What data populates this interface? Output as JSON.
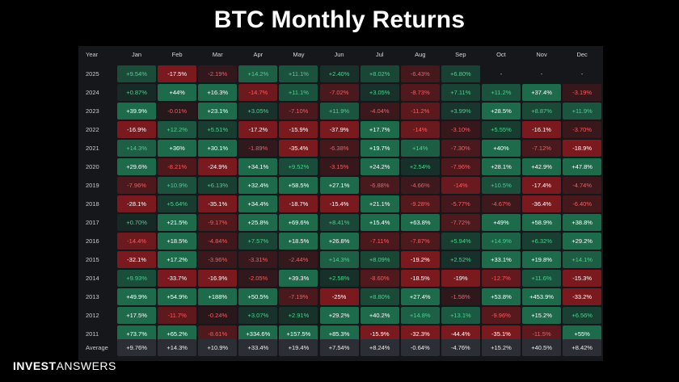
{
  "title": "BTC Monthly Returns",
  "brand": {
    "bold": "INVEST",
    "light": "ANSWERS"
  },
  "chart_data": {
    "type": "table",
    "title": "BTC Monthly Returns",
    "corner_label": "Year",
    "columns": [
      "Jan",
      "Feb",
      "Mar",
      "Apr",
      "May",
      "Jun",
      "Jul",
      "Aug",
      "Sep",
      "Oct",
      "Nov",
      "Dec"
    ],
    "rows": [
      {
        "year": "2025",
        "values": [
          "+9.54%",
          "-17.5%",
          "-2.19%",
          "+14.2%",
          "+11.1%",
          "+2.40%",
          "+8.02%",
          "-6.43%",
          "+6.80%",
          "-",
          "-",
          "-"
        ]
      },
      {
        "year": "2024",
        "values": [
          "+0.87%",
          "+44%",
          "+16.3%",
          "-14.7%",
          "+11.1%",
          "-7.02%",
          "+3.05%",
          "-8.73%",
          "+7.11%",
          "+11.2%",
          "+37.4%",
          "-3.19%"
        ]
      },
      {
        "year": "2023",
        "values": [
          "+39.9%",
          "-0.01%",
          "+23.1%",
          "+3.05%",
          "-7.10%",
          "+11.9%",
          "-4.04%",
          "-11.2%",
          "+3.99%",
          "+28.5%",
          "+8.87%",
          "+11.9%"
        ]
      },
      {
        "year": "2022",
        "values": [
          "-16.9%",
          "+12.2%",
          "+5.51%",
          "-17.2%",
          "-15.9%",
          "-37.9%",
          "+17.7%",
          "-14%",
          "-3.10%",
          "+5.55%",
          "-16.1%",
          "-3.70%"
        ]
      },
      {
        "year": "2021",
        "values": [
          "+14.3%",
          "+36%",
          "+30.1%",
          "-1.89%",
          "-35.4%",
          "-6.38%",
          "+19.7%",
          "+14%",
          "-7.30%",
          "+40%",
          "-7.12%",
          "-18.9%"
        ]
      },
      {
        "year": "2020",
        "values": [
          "+29.6%",
          "-8.21%",
          "-24.9%",
          "+34.1%",
          "+9.52%",
          "-3.15%",
          "+24.2%",
          "+2.54%",
          "-7.96%",
          "+28.1%",
          "+42.9%",
          "+47.8%"
        ]
      },
      {
        "year": "2019",
        "values": [
          "-7.96%",
          "+10.9%",
          "+6.13%",
          "+32.4%",
          "+58.5%",
          "+27.1%",
          "-6.88%",
          "-4.66%",
          "-14%",
          "+10.5%",
          "-17.4%",
          "-4.74%"
        ]
      },
      {
        "year": "2018",
        "values": [
          "-28.1%",
          "+5.64%",
          "-35.1%",
          "+34.4%",
          "-18.7%",
          "-15.4%",
          "+21.1%",
          "-9.28%",
          "-5.77%",
          "-4.67%",
          "-36.4%",
          "-6.40%"
        ]
      },
      {
        "year": "2017",
        "values": [
          "+0.70%",
          "+21.5%",
          "-9.17%",
          "+25.8%",
          "+69.6%",
          "+8.41%",
          "+15.4%",
          "+63.8%",
          "-7.72%",
          "+49%",
          "+58.9%",
          "+38.8%"
        ]
      },
      {
        "year": "2016",
        "values": [
          "-14.4%",
          "+18.5%",
          "-4.84%",
          "+7.57%",
          "+18.5%",
          "+26.8%",
          "-7.11%",
          "-7.87%",
          "+5.94%",
          "+14.9%",
          "+6.32%",
          "+29.2%"
        ]
      },
      {
        "year": "2015",
        "values": [
          "-32.1%",
          "+17.2%",
          "-3.96%",
          "-3.31%",
          "-2.44%",
          "+14.3%",
          "+8.09%",
          "-19.2%",
          "+2.52%",
          "+33.1%",
          "+19.8%",
          "+14.1%"
        ]
      },
      {
        "year": "2014",
        "values": [
          "+9.93%",
          "-33.7%",
          "-16.9%",
          "-2.05%",
          "+39.3%",
          "+2.58%",
          "-8.60%",
          "-18.5%",
          "-19%",
          "-12.7%",
          "+11.6%",
          "-15.3%"
        ]
      },
      {
        "year": "2013",
        "values": [
          "+49.9%",
          "+54.9%",
          "+188%",
          "+50.5%",
          "-7.19%",
          "-25%",
          "+8.80%",
          "+27.4%",
          "-1.58%",
          "+53.8%",
          "+453.9%",
          "-33.2%"
        ]
      },
      {
        "year": "2012",
        "values": [
          "+17.5%",
          "-11.7%",
          "-0.24%",
          "+3.07%",
          "+2.91%",
          "+29.2%",
          "+40.2%",
          "+14.8%",
          "+13.1%",
          "-9.96%",
          "+15.2%",
          "+6.56%"
        ]
      },
      {
        "year": "2011",
        "values": [
          "+73.7%",
          "+65.2%",
          "-8.61%",
          "+334.6%",
          "+157.5%",
          "+85.3%",
          "-15.9%",
          "-32.3%",
          "-44.4%",
          "-35.1%",
          "-11.5%",
          "+55%"
        ]
      }
    ],
    "average": {
      "label": "Average",
      "values": [
        "+9.76%",
        "+14.3%",
        "+10.9%",
        "+33.4%",
        "+19.4%",
        "+7.54%",
        "+8.24%",
        "-0.64%",
        "-4.76%",
        "+15.2%",
        "+40.5%",
        "+8.42%"
      ]
    },
    "colors": {
      "positive_strong": "#1e6b4c",
      "negative_strong": "#7a1a1e",
      "positive_text": "#4fd08f",
      "negative_text": "#ff5a5f",
      "neutral": "#15171b",
      "average_bg": "#2b2e35"
    }
  }
}
